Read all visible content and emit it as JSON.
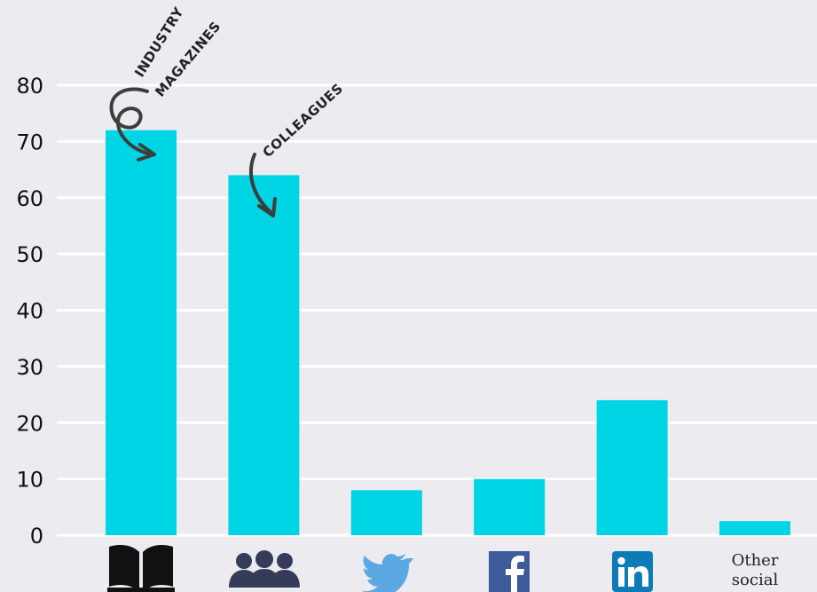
{
  "chart_data": {
    "type": "bar",
    "categories": [
      "Industry magazines",
      "Colleagues",
      "Twitter",
      "Facebook",
      "LinkedIn",
      "Other social"
    ],
    "category_icons": [
      "open-book-icon",
      "group-people-icon",
      "twitter-bird-icon",
      "facebook-logo-icon",
      "linkedin-logo-icon",
      null
    ],
    "values": [
      72,
      64,
      8,
      10,
      24,
      2.5
    ],
    "title": "",
    "xlabel": "",
    "ylabel": "",
    "ylim": [
      0,
      80
    ],
    "yticks": [
      0,
      10,
      20,
      30,
      40,
      50,
      60,
      70,
      80
    ],
    "grid": true,
    "legend": "none",
    "bar_color": "#00d5e5",
    "grid_color": "#ffffff",
    "background": "#ebebf0",
    "annotations": [
      {
        "lines": [
          "INDUSTRY",
          "MAGAZINES"
        ],
        "target_category": "Industry magazines"
      },
      {
        "lines": [
          "COLLEAGUES"
        ],
        "target_category": "Colleagues"
      }
    ],
    "x_tick_labels": {
      "other_social": [
        "Other",
        "social"
      ]
    },
    "icon_colors": {
      "book": "#111111",
      "people": "#353b58",
      "twitter": "#5ca8e2",
      "facebook": "#3b5b9a",
      "linkedin": "#0d7bb5"
    }
  }
}
